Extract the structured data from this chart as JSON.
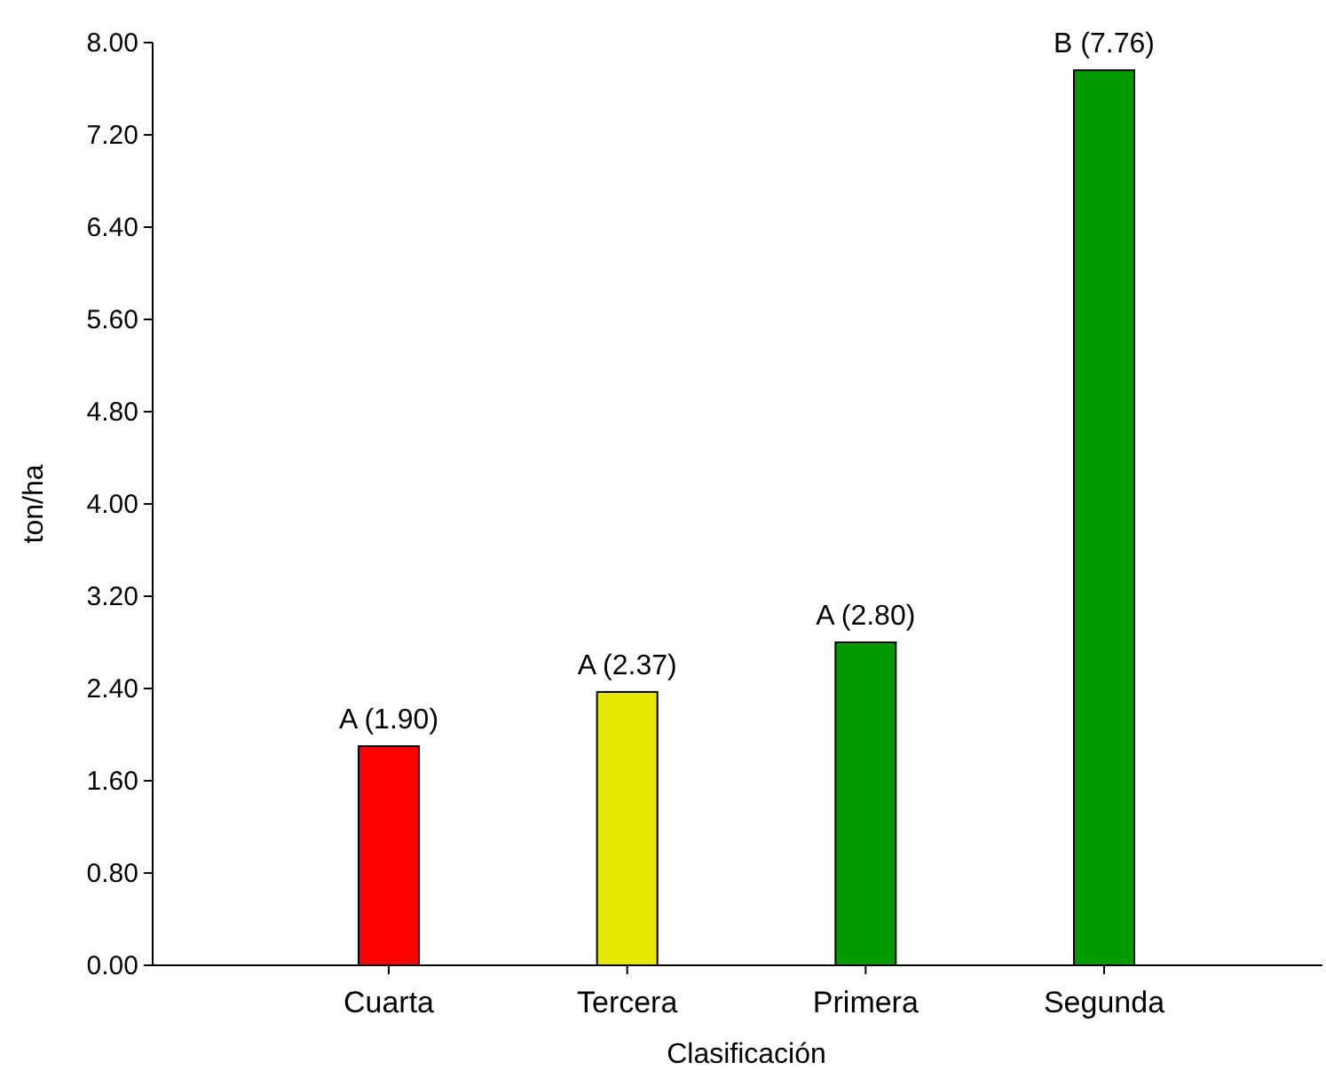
{
  "chart_data": {
    "type": "bar",
    "xlabel": "Clasificación",
    "ylabel": "ton/ha",
    "categories": [
      "Cuarta",
      "Tercera",
      "Primera",
      "Segunda"
    ],
    "values": [
      1.9,
      2.37,
      2.8,
      7.76
    ],
    "colors": [
      "#ff0000",
      "#e6e600",
      "#009900",
      "#009900"
    ],
    "value_labels": [
      "A (1.90)",
      "A (2.37)",
      "A (2.80)",
      "B (7.76)"
    ],
    "ylim": [
      0,
      8
    ],
    "yticks": [
      {
        "value": 0,
        "label": "0.00"
      },
      {
        "value": 0.8,
        "label": "0.80"
      },
      {
        "value": 1.6,
        "label": "1.60"
      },
      {
        "value": 2.4,
        "label": "2.40"
      },
      {
        "value": 3.2,
        "label": "3.20"
      },
      {
        "value": 4,
        "label": "4.00"
      },
      {
        "value": 4.8,
        "label": "4.80"
      },
      {
        "value": 5.6,
        "label": "5.60"
      },
      {
        "value": 6.4,
        "label": "6.40"
      },
      {
        "value": 7.2,
        "label": "7.20"
      },
      {
        "value": 8,
        "label": "8.00"
      }
    ],
    "grid": false
  }
}
